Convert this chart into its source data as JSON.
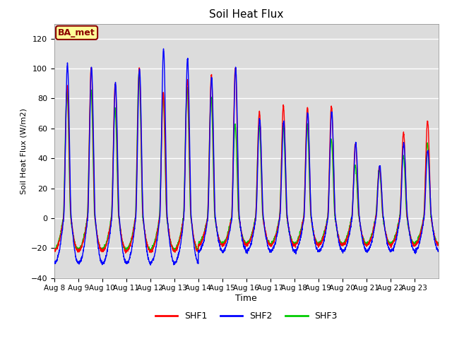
{
  "title": "Soil Heat Flux",
  "ylabel": "Soil Heat Flux (W/m2)",
  "xlabel": "Time",
  "ylim": [
    -40,
    130
  ],
  "yticks": [
    -40,
    -20,
    0,
    20,
    40,
    60,
    80,
    100,
    120
  ],
  "xtick_labels": [
    "Aug 8",
    "Aug 9",
    "Aug 10",
    "Aug 11",
    "Aug 12",
    "Aug 13",
    "Aug 14",
    "Aug 15",
    "Aug 16",
    "Aug 17",
    "Aug 18",
    "Aug 19",
    "Aug 20",
    "Aug 21",
    "Aug 22",
    "Aug 23"
  ],
  "legend_labels": [
    "SHF1",
    "SHF2",
    "SHF3"
  ],
  "annotation_text": "BA_met",
  "annotation_bg": "#FFFF99",
  "annotation_fg": "#8B0000",
  "plot_bg": "#DCDCDC",
  "line_width": 1.0,
  "title_fontsize": 11,
  "n_days": 16,
  "points_per_day": 144,
  "shf1_peaks": [
    89,
    101,
    90,
    100,
    84,
    93,
    95,
    101,
    71,
    75,
    74,
    75,
    50,
    34,
    57,
    65
  ],
  "shf2_peaks": [
    103,
    101,
    90,
    100,
    113,
    107,
    94,
    101,
    66,
    65,
    70,
    71,
    50,
    35,
    50,
    45
  ],
  "shf3_peaks": [
    85,
    86,
    73,
    98,
    82,
    87,
    80,
    62,
    62,
    62,
    62,
    53,
    35,
    33,
    42,
    50
  ],
  "shf1_troughs": [
    -22,
    -22,
    -22,
    -22,
    -22,
    -22,
    -18,
    -18,
    -18,
    -18,
    -18,
    -18,
    -18,
    -18,
    -18,
    -18
  ],
  "shf2_troughs": [
    -30,
    -30,
    -30,
    -30,
    -30,
    -30,
    -22,
    -22,
    -22,
    -22,
    -22,
    -22,
    -22,
    -22,
    -22,
    -22
  ],
  "shf3_troughs": [
    -21,
    -21,
    -21,
    -21,
    -21,
    -21,
    -17,
    -17,
    -17,
    -17,
    -17,
    -17,
    -17,
    -17,
    -17,
    -17
  ]
}
